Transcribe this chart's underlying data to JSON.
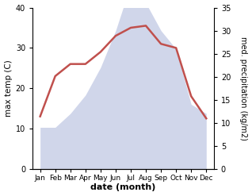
{
  "months": [
    "Jan",
    "Feb",
    "Mar",
    "Apr",
    "May",
    "Jun",
    "Jul",
    "Aug",
    "Sep",
    "Oct",
    "Nov",
    "Dec"
  ],
  "month_indices": [
    1,
    2,
    3,
    4,
    5,
    6,
    7,
    8,
    9,
    10,
    11,
    12
  ],
  "temperature": [
    13,
    23,
    26,
    26,
    29,
    33,
    35,
    35.5,
    31,
    30,
    18,
    12.5
  ],
  "precipitation": [
    9,
    9,
    12,
    16,
    22,
    30,
    40,
    36,
    30,
    26,
    14,
    12
  ],
  "temp_color": "#c0504d",
  "precip_color_face": "#b8c0e0",
  "temp_ylim": [
    0,
    40
  ],
  "precip_ylim": [
    0,
    35
  ],
  "temp_yticks": [
    0,
    10,
    20,
    30,
    40
  ],
  "precip_yticks": [
    0,
    5,
    10,
    15,
    20,
    25,
    30,
    35
  ],
  "xlabel": "date (month)",
  "ylabel_left": "max temp (C)",
  "ylabel_right": "med. precipitation (kg/m2)",
  "bg_color": "#ffffff",
  "line_width": 1.8,
  "precip_alpha": 0.65
}
